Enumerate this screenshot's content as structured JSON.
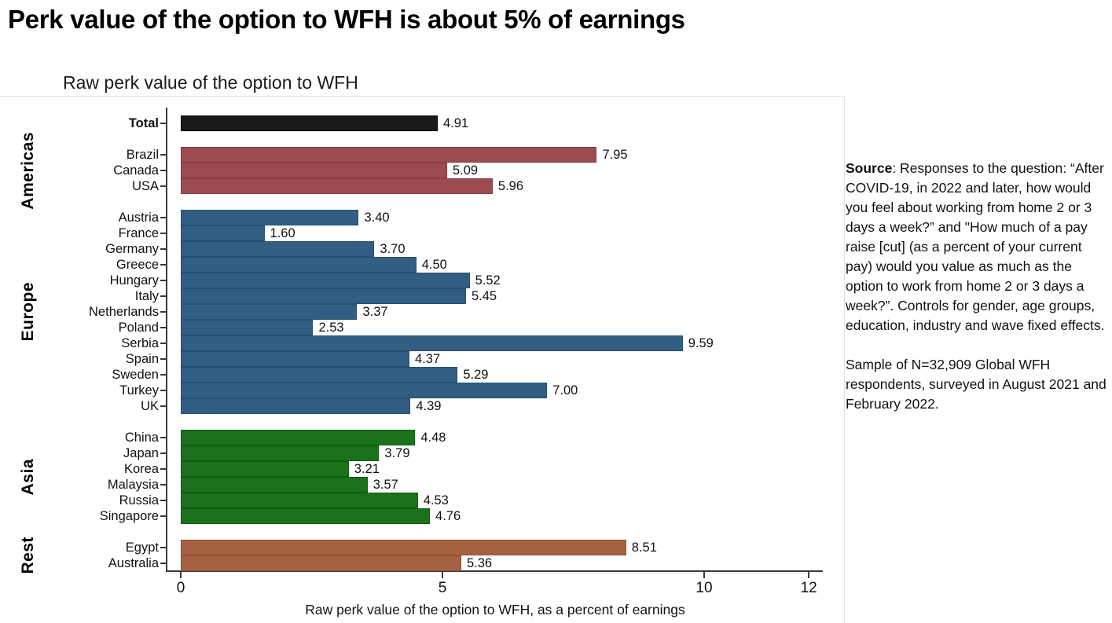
{
  "page": {
    "title": "Perk value of the option to WFH is about 5% of earnings"
  },
  "chart_data": {
    "type": "bar",
    "orientation": "horizontal",
    "subtitle": "Raw perk value of the option to WFH",
    "xlabel": "Raw perk value of the option to WFH, as a percent of earnings",
    "xlim": [
      0,
      12.3
    ],
    "xticks": [
      "0",
      "5",
      "10",
      "12"
    ],
    "xtick_values": [
      0,
      5,
      10,
      12
    ],
    "grid": false,
    "legend": "none",
    "groups": [
      {
        "region": "",
        "color": "#1a1a1a",
        "border": "#000000",
        "items": [
          {
            "label": "Total",
            "value": 4.91,
            "bold": true
          }
        ]
      },
      {
        "region": "Americas",
        "color": "#9E4A52",
        "border": "#8C3A44",
        "items": [
          {
            "label": "Brazil",
            "value": 7.95
          },
          {
            "label": "Canada",
            "value": 5.09
          },
          {
            "label": "USA",
            "value": 5.96
          }
        ]
      },
      {
        "region": "Europe",
        "color": "#335E84",
        "border": "#24506F",
        "items": [
          {
            "label": "Austria",
            "value": 3.4
          },
          {
            "label": "France",
            "value": 1.6
          },
          {
            "label": "Germany",
            "value": 3.7
          },
          {
            "label": "Greece",
            "value": 4.5
          },
          {
            "label": "Hungary",
            "value": 5.52
          },
          {
            "label": "Italy",
            "value": 5.45
          },
          {
            "label": "Netherlands",
            "value": 3.37
          },
          {
            "label": "Poland",
            "value": 2.53
          },
          {
            "label": "Serbia",
            "value": 9.59
          },
          {
            "label": "Spain",
            "value": 4.37
          },
          {
            "label": "Sweden",
            "value": 5.29
          },
          {
            "label": "Turkey",
            "value": 7.0
          },
          {
            "label": "UK",
            "value": 4.39
          }
        ]
      },
      {
        "region": "Asia",
        "color": "#1C711C",
        "border": "#0A5F0A",
        "items": [
          {
            "label": "China",
            "value": 4.48
          },
          {
            "label": "Japan",
            "value": 3.79
          },
          {
            "label": "Korea",
            "value": 3.21
          },
          {
            "label": "Malaysia",
            "value": 3.57
          },
          {
            "label": "Russia",
            "value": 4.53
          },
          {
            "label": "Singapore",
            "value": 4.76
          }
        ]
      },
      {
        "region": "Rest",
        "color": "#A56142",
        "border": "#8F5134",
        "items": [
          {
            "label": "Egypt",
            "value": 8.51
          },
          {
            "label": "Australia",
            "value": 5.36
          }
        ]
      }
    ]
  },
  "notes": {
    "source_label": "Source",
    "source_rest": ": Responses to the question: “After COVID-19, in 2022 and later, how would you feel about working from home 2 or 3 days a week?” and \"How much of a pay raise [cut] (as a percent of your current pay) would you value as much as the option to work from home 2 or 3 days a week?”. Controls for gender, age groups, education, industry and wave fixed effects.",
    "sample_text": "Sample of N=32,909 Global WFH respondents, surveyed in August 2021 and February 2022."
  }
}
